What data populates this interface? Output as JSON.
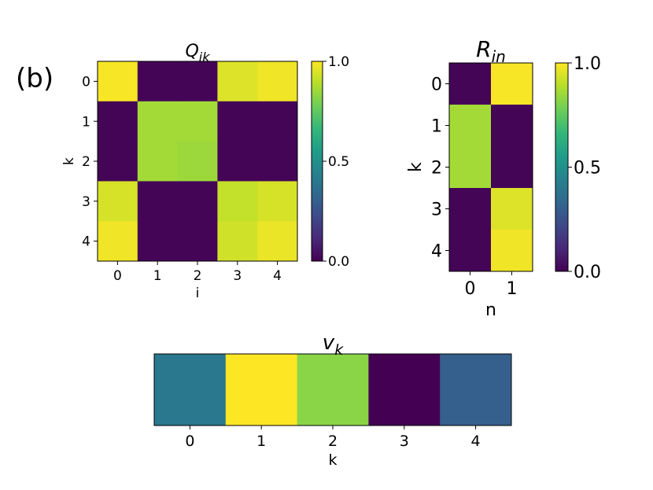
{
  "panel_label": "(b)",
  "colormap": [
    "#440154",
    "#482878",
    "#3e4989",
    "#31688e",
    "#26828e",
    "#1f9e89",
    "#35b779",
    "#6ece58",
    "#b5de2b",
    "#fde725"
  ],
  "chart_data": [
    {
      "type": "heatmap",
      "id": "Q",
      "title_main": "Q",
      "title_sub": "ik",
      "xlabel": "i",
      "ylabel": "k",
      "x_ticks": [
        "0",
        "1",
        "2",
        "3",
        "4"
      ],
      "y_ticks": [
        "0",
        "1",
        "2",
        "3",
        "4"
      ],
      "values": [
        [
          0.99,
          0.01,
          0.01,
          0.95,
          0.98
        ],
        [
          0.01,
          0.86,
          0.86,
          0.01,
          0.01
        ],
        [
          0.01,
          0.86,
          0.85,
          0.01,
          0.01
        ],
        [
          0.94,
          0.01,
          0.01,
          0.91,
          0.94
        ],
        [
          0.98,
          0.01,
          0.01,
          0.93,
          0.97
        ]
      ],
      "colorbar": {
        "ticks": [
          "0.0",
          "0.5",
          "1.0"
        ],
        "tick_values": [
          0,
          0.5,
          1.0
        ],
        "range": [
          0,
          1
        ]
      }
    },
    {
      "type": "heatmap",
      "id": "R",
      "title_main": "R",
      "title_sub": "in",
      "xlabel": "n",
      "ylabel": "k",
      "x_ticks": [
        "0",
        "1"
      ],
      "y_ticks": [
        "0",
        "1",
        "2",
        "3",
        "4"
      ],
      "values": [
        [
          0.01,
          0.99
        ],
        [
          0.86,
          0.01
        ],
        [
          0.86,
          0.01
        ],
        [
          0.01,
          0.95
        ],
        [
          0.01,
          0.98
        ]
      ],
      "colorbar": {
        "ticks": [
          "0.0",
          "0.5",
          "1.0"
        ],
        "tick_values": [
          0,
          0.5,
          1.0
        ],
        "range": [
          0,
          1
        ]
      }
    },
    {
      "type": "heatmap",
      "id": "v",
      "title_main": "v",
      "title_sub": "k",
      "xlabel": "k",
      "x_ticks": [
        "0",
        "1",
        "2",
        "3",
        "4"
      ],
      "values": [
        [
          0.4,
          1.0,
          0.82,
          0.0,
          0.3
        ]
      ]
    }
  ]
}
